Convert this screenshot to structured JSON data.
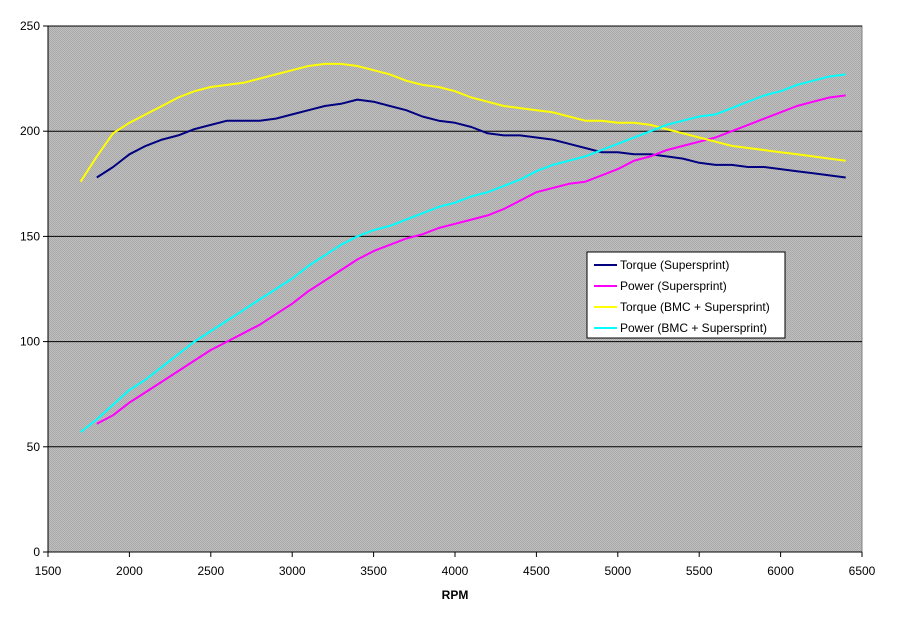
{
  "chart_data": {
    "type": "line",
    "xlabel": "RPM",
    "ylabel": "",
    "xlim": [
      1500,
      6500
    ],
    "ylim": [
      0,
      250
    ],
    "x_ticks": [
      1500,
      2000,
      2500,
      3000,
      3500,
      4000,
      4500,
      5000,
      5500,
      6000,
      6500
    ],
    "y_ticks": [
      0,
      50,
      100,
      150,
      200,
      250
    ],
    "grid": "horizontal",
    "legend_position": "right",
    "plot_background": "#c0c0c0",
    "series": [
      {
        "name": "Torque (Supersprint)",
        "color": "#000080",
        "points": [
          [
            1800,
            178
          ],
          [
            1900,
            183
          ],
          [
            2000,
            189
          ],
          [
            2100,
            193
          ],
          [
            2200,
            196
          ],
          [
            2300,
            198
          ],
          [
            2400,
            201
          ],
          [
            2500,
            203
          ],
          [
            2600,
            205
          ],
          [
            2700,
            205
          ],
          [
            2800,
            205
          ],
          [
            2900,
            206
          ],
          [
            3000,
            208
          ],
          [
            3100,
            210
          ],
          [
            3200,
            212
          ],
          [
            3300,
            213
          ],
          [
            3400,
            215
          ],
          [
            3500,
            214
          ],
          [
            3600,
            212
          ],
          [
            3700,
            210
          ],
          [
            3800,
            207
          ],
          [
            3900,
            205
          ],
          [
            4000,
            204
          ],
          [
            4100,
            202
          ],
          [
            4200,
            199
          ],
          [
            4300,
            198
          ],
          [
            4400,
            198
          ],
          [
            4500,
            197
          ],
          [
            4600,
            196
          ],
          [
            4700,
            194
          ],
          [
            4800,
            192
          ],
          [
            4900,
            190
          ],
          [
            5000,
            190
          ],
          [
            5100,
            189
          ],
          [
            5200,
            189
          ],
          [
            5300,
            188
          ],
          [
            5400,
            187
          ],
          [
            5500,
            185
          ],
          [
            5600,
            184
          ],
          [
            5700,
            184
          ],
          [
            5800,
            183
          ],
          [
            5900,
            183
          ],
          [
            6000,
            182
          ],
          [
            6100,
            181
          ],
          [
            6200,
            180
          ],
          [
            6300,
            179
          ],
          [
            6400,
            178
          ]
        ]
      },
      {
        "name": "Power (Supersprint)",
        "color": "#ff00ff",
        "points": [
          [
            1800,
            61
          ],
          [
            1900,
            65
          ],
          [
            2000,
            71
          ],
          [
            2100,
            76
          ],
          [
            2200,
            81
          ],
          [
            2300,
            86
          ],
          [
            2400,
            91
          ],
          [
            2500,
            96
          ],
          [
            2600,
            100
          ],
          [
            2700,
            104
          ],
          [
            2800,
            108
          ],
          [
            2900,
            113
          ],
          [
            3000,
            118
          ],
          [
            3100,
            124
          ],
          [
            3200,
            129
          ],
          [
            3300,
            134
          ],
          [
            3400,
            139
          ],
          [
            3500,
            143
          ],
          [
            3600,
            146
          ],
          [
            3700,
            149
          ],
          [
            3800,
            151
          ],
          [
            3900,
            154
          ],
          [
            4000,
            156
          ],
          [
            4100,
            158
          ],
          [
            4200,
            160
          ],
          [
            4300,
            163
          ],
          [
            4400,
            167
          ],
          [
            4500,
            171
          ],
          [
            4600,
            173
          ],
          [
            4700,
            175
          ],
          [
            4800,
            176
          ],
          [
            4900,
            179
          ],
          [
            5000,
            182
          ],
          [
            5100,
            186
          ],
          [
            5200,
            188
          ],
          [
            5300,
            191
          ],
          [
            5400,
            193
          ],
          [
            5500,
            195
          ],
          [
            5600,
            197
          ],
          [
            5700,
            200
          ],
          [
            5800,
            203
          ],
          [
            5900,
            206
          ],
          [
            6000,
            209
          ],
          [
            6100,
            212
          ],
          [
            6200,
            214
          ],
          [
            6300,
            216
          ],
          [
            6400,
            217
          ]
        ]
      },
      {
        "name": "Torque (BMC + Supersprint)",
        "color": "#ffff00",
        "points": [
          [
            1700,
            176
          ],
          [
            1800,
            188
          ],
          [
            1900,
            199
          ],
          [
            2000,
            204
          ],
          [
            2100,
            208
          ],
          [
            2200,
            212
          ],
          [
            2300,
            216
          ],
          [
            2400,
            219
          ],
          [
            2500,
            221
          ],
          [
            2600,
            222
          ],
          [
            2700,
            223
          ],
          [
            2800,
            225
          ],
          [
            2900,
            227
          ],
          [
            3000,
            229
          ],
          [
            3100,
            231
          ],
          [
            3200,
            232
          ],
          [
            3300,
            232
          ],
          [
            3400,
            231
          ],
          [
            3500,
            229
          ],
          [
            3600,
            227
          ],
          [
            3700,
            224
          ],
          [
            3800,
            222
          ],
          [
            3900,
            221
          ],
          [
            4000,
            219
          ],
          [
            4100,
            216
          ],
          [
            4200,
            214
          ],
          [
            4300,
            212
          ],
          [
            4400,
            211
          ],
          [
            4500,
            210
          ],
          [
            4600,
            209
          ],
          [
            4700,
            207
          ],
          [
            4800,
            205
          ],
          [
            4900,
            205
          ],
          [
            5000,
            204
          ],
          [
            5100,
            204
          ],
          [
            5200,
            203
          ],
          [
            5300,
            201
          ],
          [
            5400,
            199
          ],
          [
            5500,
            197
          ],
          [
            5600,
            195
          ],
          [
            5700,
            193
          ],
          [
            5800,
            192
          ],
          [
            5900,
            191
          ],
          [
            6000,
            190
          ],
          [
            6100,
            189
          ],
          [
            6200,
            188
          ],
          [
            6300,
            187
          ],
          [
            6400,
            186
          ]
        ]
      },
      {
        "name": "Power (BMC + Supersprint)",
        "color": "#00ffff",
        "points": [
          [
            1700,
            57
          ],
          [
            1800,
            63
          ],
          [
            1900,
            70
          ],
          [
            2000,
            77
          ],
          [
            2100,
            82
          ],
          [
            2200,
            88
          ],
          [
            2300,
            94
          ],
          [
            2400,
            100
          ],
          [
            2500,
            105
          ],
          [
            2600,
            110
          ],
          [
            2700,
            115
          ],
          [
            2800,
            120
          ],
          [
            2900,
            125
          ],
          [
            3000,
            130
          ],
          [
            3100,
            136
          ],
          [
            3200,
            141
          ],
          [
            3300,
            146
          ],
          [
            3400,
            150
          ],
          [
            3500,
            153
          ],
          [
            3600,
            155
          ],
          [
            3700,
            158
          ],
          [
            3800,
            161
          ],
          [
            3900,
            164
          ],
          [
            4000,
            166
          ],
          [
            4100,
            169
          ],
          [
            4200,
            171
          ],
          [
            4300,
            174
          ],
          [
            4400,
            177
          ],
          [
            4500,
            181
          ],
          [
            4600,
            184
          ],
          [
            4700,
            186
          ],
          [
            4800,
            188
          ],
          [
            4900,
            191
          ],
          [
            5000,
            194
          ],
          [
            5100,
            197
          ],
          [
            5200,
            200
          ],
          [
            5300,
            203
          ],
          [
            5400,
            205
          ],
          [
            5500,
            207
          ],
          [
            5600,
            208
          ],
          [
            5700,
            211
          ],
          [
            5800,
            214
          ],
          [
            5900,
            217
          ],
          [
            6000,
            219
          ],
          [
            6100,
            222
          ],
          [
            6200,
            224
          ],
          [
            6300,
            226
          ],
          [
            6400,
            227
          ]
        ]
      }
    ]
  }
}
